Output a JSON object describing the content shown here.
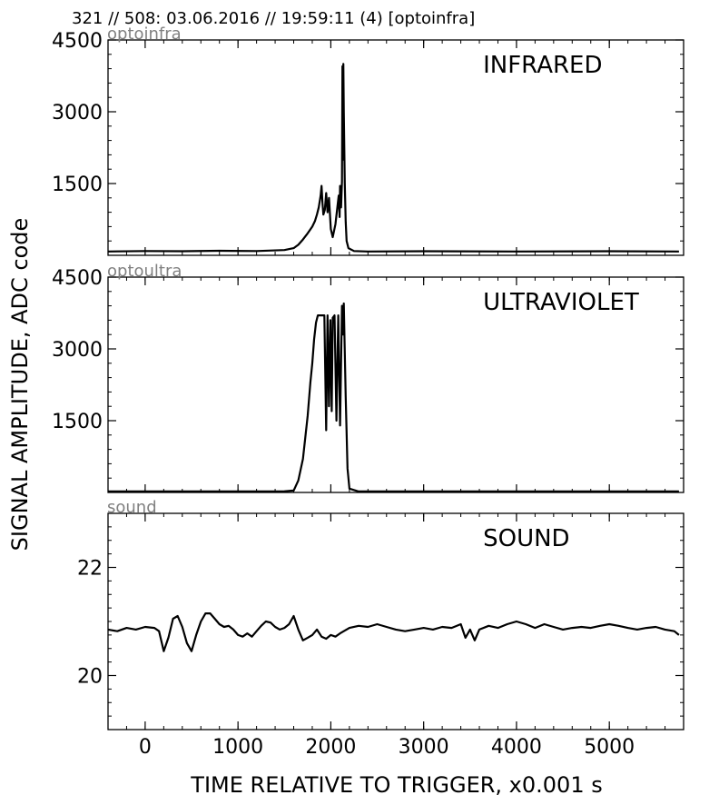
{
  "header": {
    "title": "321 // 508:   03.06.2016 // 19:59:11 (4)  [optoinfra]"
  },
  "figure": {
    "xlabel": "TIME RELATIVE TO TRIGGER,   x0.001 s",
    "ylabel": "SIGNAL AMPLITUDE,  ADC code"
  },
  "chart_data": [
    {
      "type": "line",
      "channel_label": "optoinfra",
      "panel_title": "INFRARED",
      "xlim": [
        -400,
        5800
      ],
      "ylim": [
        0,
        4500
      ],
      "yticks": [
        1500,
        3000,
        4500
      ],
      "ytick_labels": [
        "1500",
        "3000",
        "4500"
      ],
      "xticks": [
        0,
        1000,
        2000,
        3000,
        4000,
        5000
      ],
      "xtick_labels": [],
      "line_color": "#000000",
      "series": [
        {
          "x": [
            -400,
            0,
            400,
            800,
            1200,
            1500,
            1600,
            1650,
            1700,
            1750,
            1800,
            1830,
            1850,
            1870,
            1890,
            1900,
            1910,
            1920,
            1935,
            1950,
            1965,
            1980,
            2000,
            2020,
            2050,
            2070,
            2085,
            2095,
            2100,
            2110,
            2120,
            2125,
            2130,
            2135,
            2140,
            2150,
            2160,
            2170,
            2190,
            2250,
            2400,
            3000,
            4000,
            5000,
            5750
          ],
          "y": [
            80,
            90,
            85,
            95,
            90,
            110,
            150,
            220,
            330,
            460,
            600,
            720,
            850,
            1000,
            1250,
            1450,
            1100,
            850,
            950,
            1300,
            900,
            1200,
            550,
            380,
            650,
            1000,
            1250,
            800,
            1450,
            1000,
            1550,
            3950,
            2000,
            4000,
            3000,
            1500,
            700,
            300,
            150,
            90,
            80,
            85,
            80,
            85,
            80
          ]
        }
      ]
    },
    {
      "type": "line",
      "channel_label": "optoultra",
      "panel_title": "ULTRAVIOLET",
      "xlim": [
        -400,
        5800
      ],
      "ylim": [
        0,
        4500
      ],
      "yticks": [
        1500,
        3000,
        4500
      ],
      "ytick_labels": [
        "1500",
        "3000",
        "4500"
      ],
      "xticks": [
        0,
        1000,
        2000,
        3000,
        4000,
        5000
      ],
      "xtick_labels": [],
      "line_color": "#000000",
      "series": [
        {
          "x": [
            -400,
            0,
            1000,
            1500,
            1600,
            1650,
            1700,
            1750,
            1780,
            1800,
            1820,
            1840,
            1860,
            1900,
            1930,
            1950,
            1965,
            1980,
            1995,
            2010,
            2020,
            2040,
            2060,
            2080,
            2100,
            2120,
            2130,
            2140,
            2160,
            2180,
            2200,
            2300,
            3000,
            4000,
            5000,
            5750
          ],
          "y": [
            20,
            20,
            20,
            25,
            40,
            250,
            700,
            1600,
            2300,
            2700,
            3200,
            3550,
            3700,
            3700,
            3700,
            1300,
            3700,
            1800,
            3600,
            1700,
            3650,
            3700,
            1500,
            3700,
            1400,
            3900,
            3300,
            3950,
            2000,
            500,
            80,
            20,
            20,
            20,
            20,
            20
          ]
        }
      ]
    },
    {
      "type": "line",
      "channel_label": "sound",
      "panel_title": "SOUND",
      "xlim": [
        -400,
        5800
      ],
      "ylim": [
        19,
        23
      ],
      "yticks": [
        20,
        22
      ],
      "ytick_labels": [
        "20",
        "22"
      ],
      "xticks": [
        0,
        1000,
        2000,
        3000,
        4000,
        5000
      ],
      "xtick_labels": [
        "0",
        "1000",
        "2000",
        "3000",
        "4000",
        "5000"
      ],
      "line_color": "#000000",
      "series": [
        {
          "x": [
            -400,
            -300,
            -200,
            -100,
            0,
            100,
            150,
            200,
            250,
            300,
            350,
            400,
            450,
            500,
            550,
            600,
            650,
            700,
            750,
            800,
            850,
            900,
            950,
            1000,
            1050,
            1100,
            1150,
            1200,
            1250,
            1300,
            1350,
            1400,
            1450,
            1500,
            1550,
            1600,
            1650,
            1700,
            1750,
            1800,
            1850,
            1900,
            1950,
            2000,
            2050,
            2100,
            2200,
            2300,
            2400,
            2500,
            2600,
            2700,
            2800,
            2900,
            3000,
            3100,
            3200,
            3300,
            3400,
            3450,
            3500,
            3550,
            3600,
            3700,
            3800,
            3900,
            4000,
            4100,
            4200,
            4300,
            4400,
            4500,
            4600,
            4700,
            4800,
            4900,
            5000,
            5100,
            5200,
            5300,
            5400,
            5500,
            5600,
            5700,
            5750
          ],
          "y": [
            20.85,
            20.82,
            20.88,
            20.85,
            20.9,
            20.88,
            20.82,
            20.45,
            20.7,
            21.05,
            21.1,
            20.9,
            20.6,
            20.45,
            20.75,
            21.0,
            21.15,
            21.15,
            21.05,
            20.95,
            20.9,
            20.92,
            20.85,
            20.75,
            20.72,
            20.78,
            20.72,
            20.82,
            20.92,
            21.0,
            20.98,
            20.9,
            20.85,
            20.88,
            20.95,
            21.1,
            20.85,
            20.65,
            20.7,
            20.75,
            20.85,
            20.72,
            20.68,
            20.75,
            20.72,
            20.78,
            20.88,
            20.92,
            20.9,
            20.95,
            20.9,
            20.85,
            20.82,
            20.85,
            20.88,
            20.85,
            20.9,
            20.88,
            20.95,
            20.7,
            20.85,
            20.65,
            20.85,
            20.92,
            20.88,
            20.95,
            21.0,
            20.95,
            20.88,
            20.95,
            20.9,
            20.85,
            20.88,
            20.9,
            20.88,
            20.92,
            20.95,
            20.92,
            20.88,
            20.85,
            20.88,
            20.9,
            20.85,
            20.82,
            20.75
          ]
        }
      ]
    }
  ]
}
